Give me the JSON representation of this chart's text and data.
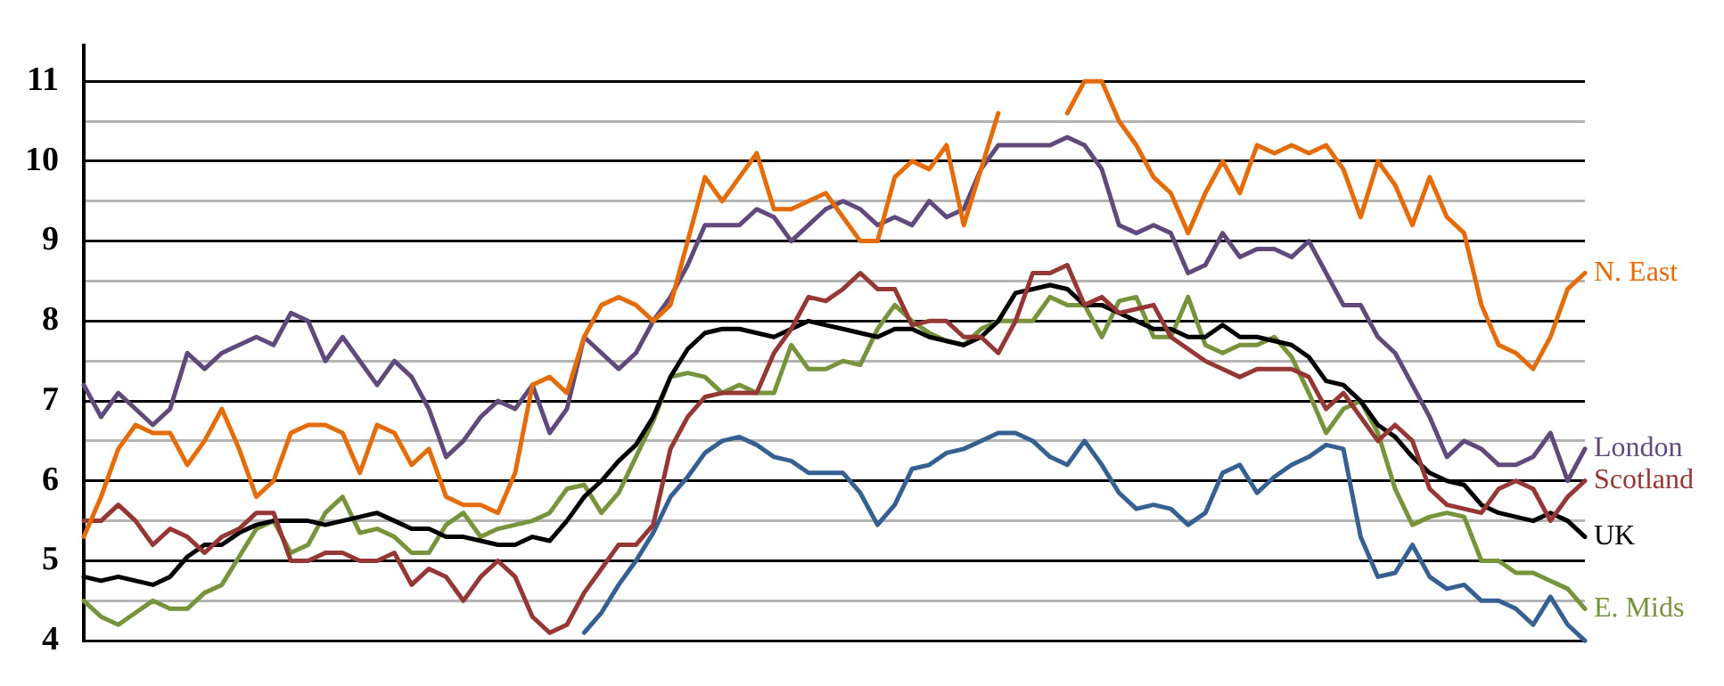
{
  "chart_data": {
    "type": "line",
    "ylim": [
      4,
      11.45
    ],
    "tick_labels": "y",
    "grid": "y",
    "marker": "none",
    "categories": [
      null,
      null,
      null,
      null,
      null,
      null,
      null,
      null,
      null,
      null,
      null,
      null,
      null,
      null,
      null,
      null,
      null,
      null,
      null,
      null,
      null,
      null,
      null,
      null,
      null,
      null,
      null,
      null,
      null,
      null,
      null,
      null,
      null,
      null,
      null,
      null,
      null,
      null,
      null,
      null,
      null,
      null,
      null,
      null,
      null,
      null,
      null,
      null,
      null,
      null,
      null,
      null,
      null,
      null,
      null,
      null,
      null,
      null,
      null,
      null,
      null,
      null,
      null,
      null,
      null,
      null,
      null,
      null,
      null,
      null,
      null,
      null,
      null,
      null,
      null,
      null,
      null,
      null,
      null,
      null,
      null,
      null,
      null,
      null,
      null,
      null,
      null,
      null
    ],
    "yticks": [
      4,
      {
        "value": 4.5,
        "label": null
      },
      5,
      {
        "value": 5.5,
        "label": null
      },
      6,
      {
        "value": 6.5,
        "label": null
      },
      7,
      {
        "value": 7.5,
        "label": null
      },
      8,
      {
        "value": 8.5,
        "label": null
      },
      9,
      {
        "value": 9.5,
        "label": null
      },
      10,
      {
        "value": 10.5,
        "label": null
      },
      11
    ],
    "series": [
      {
        "name": "N. East",
        "color": "#e46c0a",
        "values": [
          5.3,
          5.8,
          6.4,
          6.7,
          6.6,
          6.6,
          6.2,
          6.5,
          6.9,
          6.4,
          5.8,
          6.0,
          6.6,
          6.7,
          6.7,
          6.6,
          6.1,
          6.7,
          6.6,
          6.2,
          6.4,
          5.8,
          5.7,
          5.7,
          5.6,
          6.1,
          7.2,
          7.3,
          7.1,
          7.8,
          8.2,
          8.3,
          8.2,
          8.0,
          8.2,
          9.0,
          9.8,
          9.5,
          9.8,
          10.1,
          9.4,
          9.4,
          9.5,
          9.6,
          9.3,
          9.0,
          9.0,
          9.8,
          10.0,
          9.9,
          10.2,
          9.2,
          9.9,
          10.6,
          null,
          null,
          null,
          10.6,
          11.0,
          11.0,
          10.5,
          10.2,
          9.8,
          9.6,
          9.1,
          9.6,
          10.0,
          9.6,
          10.2,
          10.1,
          10.2,
          10.1,
          10.2,
          9.9,
          9.3,
          10.0,
          9.7,
          9.2,
          9.8,
          9.3,
          9.1,
          8.2,
          7.7,
          7.6,
          7.4,
          7.8,
          8.4,
          8.6
        ]
      },
      {
        "name": "London",
        "color": "#604a7b",
        "values": [
          7.2,
          6.8,
          7.1,
          6.9,
          6.7,
          6.9,
          7.6,
          7.4,
          7.6,
          7.7,
          7.8,
          7.7,
          8.1,
          8.0,
          7.5,
          7.8,
          7.5,
          7.2,
          7.5,
          7.3,
          6.9,
          6.3,
          6.5,
          6.8,
          7.0,
          6.9,
          7.2,
          6.6,
          6.9,
          7.8,
          7.6,
          7.4,
          7.6,
          8.0,
          8.3,
          8.7,
          9.2,
          9.2,
          9.2,
          9.4,
          9.3,
          9.0,
          9.2,
          9.4,
          9.5,
          9.4,
          9.2,
          9.3,
          9.2,
          9.5,
          9.3,
          9.4,
          9.9,
          10.2,
          10.2,
          10.2,
          10.2,
          10.3,
          10.2,
          9.9,
          9.2,
          9.1,
          9.2,
          9.1,
          8.6,
          8.7,
          9.1,
          8.8,
          8.9,
          8.9,
          8.8,
          9.0,
          8.6,
          8.2,
          8.2,
          7.8,
          7.6,
          7.2,
          6.8,
          6.3,
          6.5,
          6.4,
          6.2,
          6.2,
          6.3,
          6.6,
          6.0,
          6.4
        ]
      },
      {
        "name": "Scotland",
        "color": "#953735",
        "values": [
          5.5,
          5.5,
          5.7,
          5.5,
          5.2,
          5.4,
          5.3,
          5.1,
          5.3,
          5.4,
          5.6,
          5.6,
          5.0,
          5.0,
          5.1,
          5.1,
          5.0,
          5.0,
          5.1,
          4.7,
          4.9,
          4.8,
          4.5,
          4.8,
          5.0,
          4.8,
          4.3,
          4.1,
          4.2,
          4.6,
          4.9,
          5.2,
          5.2,
          5.45,
          6.4,
          6.8,
          7.05,
          7.1,
          7.1,
          7.1,
          7.6,
          7.9,
          8.3,
          8.25,
          8.4,
          8.6,
          8.4,
          8.4,
          7.95,
          8.0,
          8.0,
          7.8,
          7.8,
          7.6,
          8.0,
          8.6,
          8.6,
          8.7,
          8.2,
          8.3,
          8.1,
          8.15,
          8.2,
          7.8,
          7.65,
          7.5,
          7.4,
          7.3,
          7.4,
          7.4,
          7.4,
          7.3,
          6.9,
          7.1,
          6.8,
          6.5,
          6.7,
          6.5,
          5.9,
          5.7,
          5.65,
          5.6,
          5.9,
          6.0,
          5.9,
          5.5,
          5.8,
          6.0
        ]
      },
      {
        "name": "UK",
        "color": "#000000",
        "values": [
          4.8,
          4.75,
          4.8,
          4.75,
          4.7,
          4.8,
          5.05,
          5.2,
          5.2,
          5.35,
          5.45,
          5.5,
          5.5,
          5.5,
          5.45,
          5.5,
          5.55,
          5.6,
          5.5,
          5.4,
          5.4,
          5.3,
          5.3,
          5.25,
          5.2,
          5.2,
          5.3,
          5.25,
          5.5,
          5.8,
          6.0,
          6.25,
          6.45,
          6.8,
          7.3,
          7.65,
          7.85,
          7.9,
          7.9,
          7.85,
          7.8,
          7.9,
          8.0,
          7.95,
          7.9,
          7.85,
          7.8,
          7.9,
          7.9,
          7.8,
          7.75,
          7.7,
          7.8,
          8.0,
          8.35,
          8.4,
          8.45,
          8.4,
          8.2,
          8.2,
          8.1,
          8.0,
          7.9,
          7.9,
          7.8,
          7.8,
          7.95,
          7.8,
          7.8,
          7.75,
          7.7,
          7.55,
          7.25,
          7.2,
          7.0,
          6.7,
          6.55,
          6.3,
          6.1,
          6.0,
          5.95,
          5.7,
          5.6,
          5.55,
          5.5,
          5.6,
          5.5,
          5.3
        ]
      },
      {
        "name": "E. Mids",
        "color": "#77933c",
        "values": [
          4.5,
          4.3,
          4.2,
          4.35,
          4.5,
          4.4,
          4.4,
          4.6,
          4.7,
          5.05,
          5.4,
          5.5,
          5.1,
          5.2,
          5.6,
          5.8,
          5.35,
          5.4,
          5.3,
          5.1,
          5.1,
          5.45,
          5.6,
          5.3,
          5.4,
          5.45,
          5.5,
          5.6,
          5.9,
          5.95,
          5.6,
          5.85,
          6.3,
          6.75,
          7.3,
          7.35,
          7.3,
          7.1,
          7.2,
          7.1,
          7.1,
          7.7,
          7.4,
          7.4,
          7.5,
          7.45,
          7.9,
          8.2,
          8.0,
          7.85,
          7.75,
          7.7,
          7.9,
          8.0,
          8.0,
          8.0,
          8.3,
          8.2,
          8.2,
          7.8,
          8.25,
          8.3,
          7.8,
          7.8,
          8.3,
          7.7,
          7.6,
          7.7,
          7.7,
          7.8,
          7.55,
          7.1,
          6.6,
          6.9,
          7.0,
          6.6,
          5.9,
          5.45,
          5.55,
          5.6,
          5.55,
          5.0,
          5.0,
          4.85,
          4.85,
          4.75,
          4.65,
          4.4
        ]
      },
      {
        "color": "#376092",
        "values": [
          null,
          null,
          null,
          null,
          null,
          null,
          null,
          null,
          null,
          null,
          null,
          null,
          null,
          null,
          null,
          null,
          null,
          null,
          null,
          null,
          null,
          null,
          null,
          null,
          null,
          null,
          null,
          null,
          null,
          4.1,
          4.35,
          4.7,
          5.0,
          5.35,
          5.8,
          6.05,
          6.35,
          6.5,
          6.55,
          6.45,
          6.3,
          6.25,
          6.1,
          6.1,
          6.1,
          5.85,
          5.45,
          5.7,
          6.15,
          6.2,
          6.35,
          6.4,
          6.5,
          6.6,
          6.6,
          6.5,
          6.3,
          6.2,
          6.5,
          6.2,
          5.85,
          5.65,
          5.7,
          5.65,
          5.45,
          5.6,
          6.1,
          6.2,
          5.85,
          6.05,
          6.2,
          6.3,
          6.45,
          6.4,
          5.3,
          4.8,
          4.85,
          5.2,
          4.8,
          4.65,
          4.7,
          4.5,
          4.5,
          4.4,
          4.2,
          4.55,
          4.2,
          4.0
        ]
      }
    ]
  }
}
